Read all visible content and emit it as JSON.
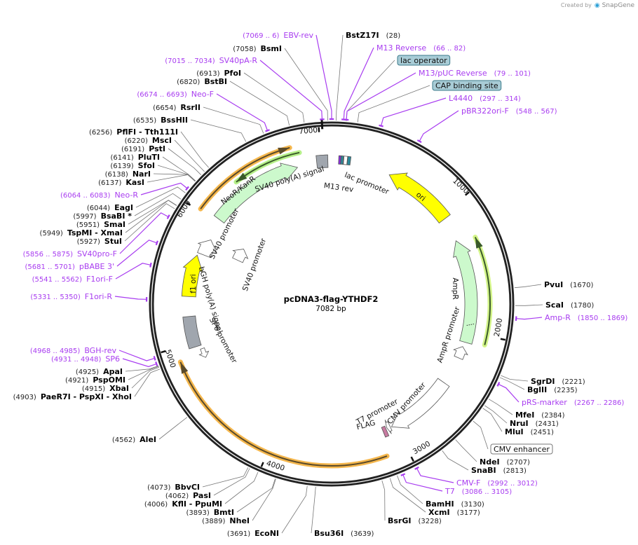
{
  "credit": {
    "prefix": "Created by",
    "brand": "SnapGene"
  },
  "plasmid": {
    "name": "pcDNA3-flag-YTHDF2",
    "length_label": "7082 bp",
    "length": 7082
  },
  "ticks": [
    "1000",
    "2000",
    "3000",
    "4000",
    "5000",
    "6000",
    "7000"
  ],
  "colors": {
    "primer": "#a83cf0",
    "ori": "#ffff00",
    "marker": "#ccf9cc",
    "orf": "#f5b74d",
    "grey": "#a0a6ae",
    "box": "#a8ccd6"
  },
  "labels": [
    {
      "kind": "primer",
      "name": "EBV-rev",
      "loc": "(7069 .. 6)",
      "bp": 0
    },
    {
      "kind": "enzyme",
      "name": "BsmI",
      "loc": "(7058)",
      "bp": 7058
    },
    {
      "kind": "primer",
      "name": "SV40pA-R",
      "loc": "(7015 .. 7034)",
      "bp": 7024
    },
    {
      "kind": "enzyme",
      "name": "PfoI",
      "loc": "(6913)",
      "bp": 6913
    },
    {
      "kind": "enzyme",
      "name": "BstBI",
      "loc": "(6820)",
      "bp": 6820
    },
    {
      "kind": "primer",
      "name": "Neo-F",
      "loc": "(6674 .. 6693)",
      "bp": 6683
    },
    {
      "kind": "enzyme",
      "name": "RsrII",
      "loc": "(6654)",
      "bp": 6654
    },
    {
      "kind": "enzyme",
      "name": "BssHII",
      "loc": "(6535)",
      "bp": 6535
    },
    {
      "kind": "enzyme",
      "name": "PflFI  - Tth111I",
      "loc": "(6256)",
      "bp": 6256
    },
    {
      "kind": "enzyme",
      "name": "MscI",
      "loc": "(6220)",
      "bp": 6220
    },
    {
      "kind": "enzyme",
      "name": "PstI",
      "loc": "(6191)",
      "bp": 6191
    },
    {
      "kind": "enzyme",
      "name": "PluTI",
      "loc": "(6141)",
      "bp": 6141
    },
    {
      "kind": "enzyme",
      "name": "SfoI",
      "loc": "(6139)",
      "bp": 6139
    },
    {
      "kind": "enzyme",
      "name": "NarI",
      "loc": "(6138)",
      "bp": 6138
    },
    {
      "kind": "enzyme",
      "name": "KasI",
      "loc": "(6137)",
      "bp": 6137
    },
    {
      "kind": "primer",
      "name": "Neo-R",
      "loc": "(6064 .. 6083)",
      "bp": 6073
    },
    {
      "kind": "enzyme",
      "name": "EagI",
      "loc": "(6044)",
      "bp": 6044
    },
    {
      "kind": "enzyme",
      "name": "BsaBI *",
      "loc": "(5997)",
      "bp": 5997
    },
    {
      "kind": "enzyme",
      "name": "SmaI",
      "loc": "(5951)",
      "bp": 5951
    },
    {
      "kind": "enzyme",
      "name": "TspMI  - XmaI",
      "loc": "(5949)",
      "bp": 5949
    },
    {
      "kind": "enzyme",
      "name": "StuI",
      "loc": "(5927)",
      "bp": 5927
    },
    {
      "kind": "primer",
      "name": "SV40pro-F",
      "loc": "(5856 .. 5875)",
      "bp": 5865
    },
    {
      "kind": "primer",
      "name": "pBABE 3'",
      "loc": "(5681 .. 5701)",
      "bp": 5691
    },
    {
      "kind": "primer",
      "name": "F1ori-F",
      "loc": "(5541 .. 5562)",
      "bp": 5551
    },
    {
      "kind": "primer",
      "name": "F1ori-R",
      "loc": "(5331 .. 5350)",
      "bp": 5340
    },
    {
      "kind": "primer",
      "name": "BGH-rev",
      "loc": "(4968 .. 4985)",
      "bp": 4976
    },
    {
      "kind": "primer",
      "name": "SP6",
      "loc": "(4931 .. 4948)",
      "bp": 4940
    },
    {
      "kind": "enzyme",
      "name": "ApaI",
      "loc": "(4925)",
      "bp": 4925
    },
    {
      "kind": "enzyme",
      "name": "PspOMI",
      "loc": "(4921)",
      "bp": 4921
    },
    {
      "kind": "enzyme",
      "name": "XbaI",
      "loc": "(4915)",
      "bp": 4915
    },
    {
      "kind": "enzyme",
      "name": "PaeR7I   - PspXI   - XhoI",
      "loc": "(4903)",
      "bp": 4903
    },
    {
      "kind": "enzyme",
      "name": "AleI",
      "loc": "(4562)",
      "bp": 4562
    },
    {
      "kind": "enzyme",
      "name": "BbvCI",
      "loc": "(4073)",
      "bp": 4073
    },
    {
      "kind": "enzyme",
      "name": "PasI",
      "loc": "(4062)",
      "bp": 4062
    },
    {
      "kind": "enzyme",
      "name": "KflI   - PpuMI",
      "loc": "(4006)",
      "bp": 4006
    },
    {
      "kind": "enzyme",
      "name": "BmtI",
      "loc": "(3893)",
      "bp": 3893
    },
    {
      "kind": "enzyme",
      "name": "NheI",
      "loc": "(3889)",
      "bp": 3889
    },
    {
      "kind": "enzyme",
      "name": "EcoNI",
      "loc": "(3691)",
      "bp": 3691
    },
    {
      "kind": "enzyme",
      "name": "Bsu36I",
      "loc": "(3639)",
      "bp": 3639
    },
    {
      "kind": "enzyme",
      "name": "BstZ17I",
      "loc": "(28)",
      "bp": 28
    },
    {
      "kind": "primer",
      "name": "M13 Reverse",
      "loc": "(66 .. 82)",
      "bp": 74
    },
    {
      "kind": "box",
      "name": "lac operator",
      "loc": "",
      "bp": 90
    },
    {
      "kind": "primer",
      "name": "M13/pUC Reverse",
      "loc": "(79 .. 101)",
      "bp": 90
    },
    {
      "kind": "box",
      "name": "CAP binding site",
      "loc": "",
      "bp": 160
    },
    {
      "kind": "primer",
      "name": "L4440",
      "loc": "(297 .. 314)",
      "bp": 305
    },
    {
      "kind": "primer",
      "name": "pBR322ori-F",
      "loc": "(548 .. 567)",
      "bp": 557
    },
    {
      "kind": "enzyme",
      "name": "PvuI",
      "loc": "(1670)",
      "bp": 1670
    },
    {
      "kind": "enzyme",
      "name": "ScaI",
      "loc": "(1780)",
      "bp": 1780
    },
    {
      "kind": "primer",
      "name": "Amp-R",
      "loc": "(1850 .. 1869)",
      "bp": 1859
    },
    {
      "kind": "enzyme",
      "name": "SgrDI",
      "loc": "(2221)",
      "bp": 2221
    },
    {
      "kind": "enzyme",
      "name": "BglII",
      "loc": "(2235)",
      "bp": 2235
    },
    {
      "kind": "primer",
      "name": "pRS-marker",
      "loc": "(2267 .. 2286)",
      "bp": 2276
    },
    {
      "kind": "enzyme",
      "name": "MfeI",
      "loc": "(2384)",
      "bp": 2384
    },
    {
      "kind": "enzyme",
      "name": "NruI",
      "loc": "(2431)",
      "bp": 2431
    },
    {
      "kind": "enzyme",
      "name": "MluI",
      "loc": "(2451)",
      "bp": 2451
    },
    {
      "kind": "box",
      "name": "CMV enhancer",
      "loc": "",
      "bp": 2550
    },
    {
      "kind": "enzyme",
      "name": "NdeI",
      "loc": "(2707)",
      "bp": 2707
    },
    {
      "kind": "enzyme",
      "name": "SnaBI",
      "loc": "(2813)",
      "bp": 2813
    },
    {
      "kind": "primer",
      "name": "CMV-F",
      "loc": "(2992 .. 3012)",
      "bp": 3002
    },
    {
      "kind": "primer",
      "name": "T7",
      "loc": "(3086 .. 3105)",
      "bp": 3095
    },
    {
      "kind": "enzyme",
      "name": "BamHI",
      "loc": "(3130)",
      "bp": 3130
    },
    {
      "kind": "enzyme",
      "name": "XcmI",
      "loc": "(3177)",
      "bp": 3177
    },
    {
      "kind": "enzyme",
      "name": "BsrGI",
      "loc": "(3228)",
      "bp": 3228
    }
  ],
  "features": [
    {
      "name": "NeoR/KanR"
    },
    {
      "name": "SV40 poly(A) signal"
    },
    {
      "name": "M13 rev"
    },
    {
      "name": "lac promoter"
    },
    {
      "name": "ori"
    },
    {
      "name": "SV40 promoter"
    },
    {
      "name": "SV40 promoter"
    },
    {
      "name": "f1 ori"
    },
    {
      "name": "bGH poly(A) signal"
    },
    {
      "name": "SP6 promoter"
    },
    {
      "name": "AmpR"
    },
    {
      "name": "AmpR promoter"
    },
    {
      "name": "CMV promoter"
    },
    {
      "name": "T7 promoter"
    },
    {
      "name": "FLAG"
    }
  ]
}
